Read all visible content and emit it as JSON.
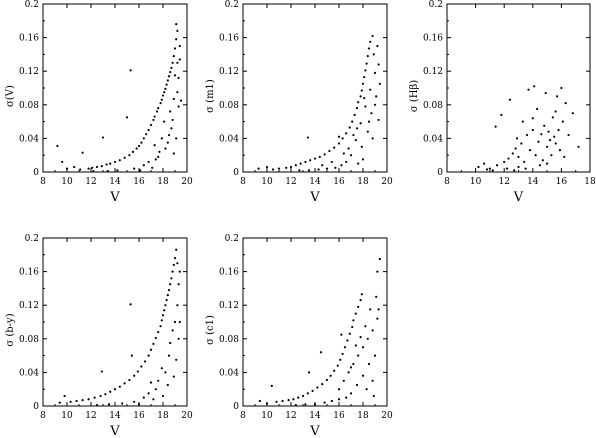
{
  "chart_data": [
    {
      "type": "scatter",
      "xlabel": "V",
      "ylabel": "σ(V)",
      "xlim": [
        8,
        20
      ],
      "ylim": [
        0,
        0.2
      ],
      "xticks": [
        "8",
        "10",
        "12",
        "14",
        "16",
        "18",
        "20"
      ],
      "yticks": [
        "0",
        "0.04",
        "0.08",
        "0.12",
        "0.16",
        "0.2"
      ],
      "points": [
        [
          9.2,
          0.031
        ],
        [
          9.6,
          0.012
        ],
        [
          10.0,
          0.004
        ],
        [
          10.6,
          0.006
        ],
        [
          11.1,
          0.003
        ],
        [
          11.3,
          0.023
        ],
        [
          11.8,
          0.004
        ],
        [
          12.1,
          0.005
        ],
        [
          12.5,
          0.006
        ],
        [
          12.9,
          0.007
        ],
        [
          13.0,
          0.041
        ],
        [
          13.3,
          0.009
        ],
        [
          13.6,
          0.01
        ],
        [
          14.0,
          0.012
        ],
        [
          14.4,
          0.014
        ],
        [
          14.8,
          0.017
        ],
        [
          15.0,
          0.065
        ],
        [
          15.2,
          0.02
        ],
        [
          15.3,
          0.121
        ],
        [
          15.5,
          0.024
        ],
        [
          15.8,
          0.028
        ],
        [
          16.0,
          0.031
        ],
        [
          16.2,
          0.035
        ],
        [
          16.4,
          0.04
        ],
        [
          16.6,
          0.045
        ],
        [
          16.8,
          0.05
        ],
        [
          17.0,
          0.056
        ],
        [
          17.2,
          0.062
        ],
        [
          17.3,
          0.066
        ],
        [
          17.5,
          0.072
        ],
        [
          17.6,
          0.076
        ],
        [
          17.8,
          0.082
        ],
        [
          17.9,
          0.086
        ],
        [
          18.0,
          0.091
        ],
        [
          18.1,
          0.095
        ],
        [
          18.2,
          0.099
        ],
        [
          18.3,
          0.104
        ],
        [
          18.4,
          0.109
        ],
        [
          18.5,
          0.114
        ],
        [
          18.6,
          0.119
        ],
        [
          18.7,
          0.124
        ],
        [
          18.8,
          0.13
        ],
        [
          18.9,
          0.138
        ],
        [
          19.0,
          0.147
        ],
        [
          19.1,
          0.158
        ],
        [
          19.2,
          0.168
        ],
        [
          19.1,
          0.176
        ],
        [
          18.8,
          0.062
        ],
        [
          18.5,
          0.044
        ],
        [
          18.9,
          0.087
        ],
        [
          19.3,
          0.112
        ],
        [
          19.4,
          0.134
        ],
        [
          18.2,
          0.028
        ],
        [
          17.6,
          0.018
        ],
        [
          17.9,
          0.04
        ],
        [
          18.6,
          0.072
        ],
        [
          19.2,
          0.095
        ],
        [
          19.0,
          0.115
        ],
        [
          16.4,
          0.008
        ],
        [
          16.8,
          0.012
        ],
        [
          17.1,
          0.005
        ],
        [
          17.4,
          0.015
        ],
        [
          17.7,
          0.024
        ],
        [
          18.1,
          0.06
        ],
        [
          18.4,
          0.035
        ],
        [
          18.7,
          0.052
        ],
        [
          19.3,
          0.078
        ],
        [
          19.4,
          0.15
        ],
        [
          15.6,
          0.004
        ],
        [
          16.1,
          0.002
        ],
        [
          14.2,
          0.002
        ],
        [
          13.4,
          0.001
        ],
        [
          12.2,
          0.001
        ],
        [
          18.9,
          0.022
        ],
        [
          19.1,
          0.04
        ],
        [
          17.3,
          0.032
        ],
        [
          19.5,
          0.085
        ],
        [
          19.2,
          0.13
        ]
      ]
    },
    {
      "type": "scatter",
      "xlabel": "V",
      "ylabel": "σ (m1)",
      "xlim": [
        8,
        20
      ],
      "ylim": [
        0,
        0.2
      ],
      "xticks": [
        "8",
        "10",
        "12",
        "14",
        "16",
        "18",
        "20"
      ],
      "yticks": [
        "0",
        "0.04",
        "0.08",
        "0.12",
        "0.16",
        "0.2"
      ],
      "points": [
        [
          9.3,
          0.004
        ],
        [
          10.0,
          0.006
        ],
        [
          10.5,
          0.003
        ],
        [
          11.0,
          0.004
        ],
        [
          11.6,
          0.005
        ],
        [
          12.0,
          0.006
        ],
        [
          12.4,
          0.008
        ],
        [
          12.8,
          0.01
        ],
        [
          13.2,
          0.012
        ],
        [
          13.4,
          0.041
        ],
        [
          13.6,
          0.014
        ],
        [
          14.0,
          0.016
        ],
        [
          14.4,
          0.018
        ],
        [
          14.8,
          0.021
        ],
        [
          15.2,
          0.025
        ],
        [
          15.6,
          0.029
        ],
        [
          16.0,
          0.034
        ],
        [
          16.3,
          0.04
        ],
        [
          16.6,
          0.046
        ],
        [
          16.9,
          0.053
        ],
        [
          17.1,
          0.06
        ],
        [
          17.3,
          0.068
        ],
        [
          17.5,
          0.076
        ],
        [
          17.6,
          0.083
        ],
        [
          17.8,
          0.09
        ],
        [
          17.9,
          0.097
        ],
        [
          18.0,
          0.105
        ],
        [
          18.1,
          0.113
        ],
        [
          18.2,
          0.121
        ],
        [
          18.3,
          0.129
        ],
        [
          18.4,
          0.138
        ],
        [
          18.5,
          0.147
        ],
        [
          18.6,
          0.155
        ],
        [
          18.8,
          0.162
        ],
        [
          17.0,
          0.02
        ],
        [
          17.4,
          0.038
        ],
        [
          17.8,
          0.058
        ],
        [
          18.2,
          0.078
        ],
        [
          18.6,
          0.098
        ],
        [
          19.0,
          0.118
        ],
        [
          19.3,
          0.128
        ],
        [
          19.1,
          0.09
        ],
        [
          18.7,
          0.07
        ],
        [
          18.4,
          0.048
        ],
        [
          17.9,
          0.03
        ],
        [
          16.6,
          0.012
        ],
        [
          16.2,
          0.008
        ],
        [
          15.7,
          0.005
        ],
        [
          15.0,
          0.004
        ],
        [
          14.3,
          0.003
        ],
        [
          13.5,
          0.002
        ],
        [
          12.7,
          0.002
        ],
        [
          18.9,
          0.14
        ],
        [
          19.2,
          0.15
        ],
        [
          19.4,
          0.105
        ],
        [
          17.2,
          0.044
        ],
        [
          16.8,
          0.028
        ],
        [
          18.5,
          0.06
        ],
        [
          19.0,
          0.08
        ],
        [
          18.0,
          0.015
        ],
        [
          17.6,
          0.01
        ],
        [
          16.4,
          0.022
        ],
        [
          15.4,
          0.012
        ],
        [
          14.6,
          0.008
        ],
        [
          19.3,
          0.062
        ],
        [
          18.8,
          0.04
        ],
        [
          17.5,
          0.052
        ],
        [
          16.0,
          0.042
        ],
        [
          18.1,
          0.088
        ]
      ]
    },
    {
      "type": "scatter",
      "xlabel": "V",
      "ylabel": "σ (Hβ)",
      "xlim": [
        8,
        18
      ],
      "ylim": [
        0,
        0.2
      ],
      "xticks": [
        "8",
        "10",
        "12",
        "14",
        "16",
        "18"
      ],
      "yticks": [
        "0",
        "0.04",
        "0.08",
        "0.12",
        "0.16",
        "0.2"
      ],
      "points": [
        [
          10.2,
          0.006
        ],
        [
          10.6,
          0.01
        ],
        [
          11.0,
          0.004
        ],
        [
          11.4,
          0.054
        ],
        [
          11.5,
          0.008
        ],
        [
          11.8,
          0.068
        ],
        [
          12.0,
          0.012
        ],
        [
          12.3,
          0.016
        ],
        [
          12.4,
          0.086
        ],
        [
          12.6,
          0.022
        ],
        [
          12.8,
          0.028
        ],
        [
          12.9,
          0.04
        ],
        [
          13.0,
          0.018
        ],
        [
          13.2,
          0.034
        ],
        [
          13.3,
          0.06
        ],
        [
          13.4,
          0.012
        ],
        [
          13.6,
          0.044
        ],
        [
          13.7,
          0.098
        ],
        [
          13.8,
          0.026
        ],
        [
          14.0,
          0.05
        ],
        [
          14.1,
          0.102
        ],
        [
          14.2,
          0.02
        ],
        [
          14.3,
          0.075
        ],
        [
          14.4,
          0.036
        ],
        [
          14.6,
          0.045
        ],
        [
          14.7,
          0.014
        ],
        [
          14.8,
          0.055
        ],
        [
          14.9,
          0.094
        ],
        [
          15.0,
          0.03
        ],
        [
          15.1,
          0.048
        ],
        [
          15.2,
          0.038
        ],
        [
          15.3,
          0.02
        ],
        [
          15.4,
          0.065
        ],
        [
          15.5,
          0.042
        ],
        [
          15.6,
          0.034
        ],
        [
          15.7,
          0.09
        ],
        [
          15.8,
          0.05
        ],
        [
          15.9,
          0.026
        ],
        [
          16.0,
          0.1
        ],
        [
          16.1,
          0.06
        ],
        [
          16.2,
          0.018
        ],
        [
          16.3,
          0.082
        ],
        [
          16.5,
          0.044
        ],
        [
          16.8,
          0.07
        ],
        [
          17.2,
          0.03
        ],
        [
          13.0,
          0.006
        ],
        [
          13.5,
          0.004
        ],
        [
          14.5,
          0.008
        ],
        [
          15.0,
          0.01
        ],
        [
          12.2,
          0.004
        ],
        [
          12.7,
          0.002
        ],
        [
          11.2,
          0.002
        ],
        [
          10.8,
          0.003
        ],
        [
          14.0,
          0.064
        ],
        [
          15.6,
          0.072
        ]
      ]
    },
    {
      "type": "scatter",
      "xlabel": "V",
      "ylabel": "σ (b-y)",
      "xlim": [
        8,
        20
      ],
      "ylim": [
        0,
        0.2
      ],
      "xticks": [
        "8",
        "10",
        "12",
        "14",
        "16",
        "18",
        "20"
      ],
      "yticks": [
        "0",
        "0.04",
        "0.08",
        "0.12",
        "0.16",
        "0.2"
      ],
      "points": [
        [
          9.4,
          0.004
        ],
        [
          9.8,
          0.012
        ],
        [
          10.3,
          0.005
        ],
        [
          10.8,
          0.006
        ],
        [
          11.3,
          0.007
        ],
        [
          11.8,
          0.008
        ],
        [
          12.3,
          0.01
        ],
        [
          12.8,
          0.012
        ],
        [
          12.9,
          0.041
        ],
        [
          13.2,
          0.014
        ],
        [
          13.6,
          0.017
        ],
        [
          14.0,
          0.02
        ],
        [
          14.4,
          0.023
        ],
        [
          14.8,
          0.027
        ],
        [
          15.2,
          0.031
        ],
        [
          15.3,
          0.121
        ],
        [
          15.4,
          0.06
        ],
        [
          15.6,
          0.036
        ],
        [
          15.9,
          0.041
        ],
        [
          16.2,
          0.047
        ],
        [
          16.5,
          0.053
        ],
        [
          16.8,
          0.06
        ],
        [
          17.0,
          0.067
        ],
        [
          17.2,
          0.074
        ],
        [
          17.4,
          0.081
        ],
        [
          17.6,
          0.088
        ],
        [
          17.8,
          0.095
        ],
        [
          17.9,
          0.102
        ],
        [
          18.0,
          0.108
        ],
        [
          18.1,
          0.114
        ],
        [
          18.2,
          0.12
        ],
        [
          18.3,
          0.126
        ],
        [
          18.4,
          0.132
        ],
        [
          18.5,
          0.138
        ],
        [
          18.6,
          0.145
        ],
        [
          18.7,
          0.152
        ],
        [
          18.8,
          0.16
        ],
        [
          18.9,
          0.168
        ],
        [
          19.0,
          0.176
        ],
        [
          19.1,
          0.186
        ],
        [
          18.5,
          0.06
        ],
        [
          18.8,
          0.09
        ],
        [
          19.2,
          0.12
        ],
        [
          19.3,
          0.145
        ],
        [
          19.4,
          0.16
        ],
        [
          17.6,
          0.03
        ],
        [
          17.9,
          0.045
        ],
        [
          18.2,
          0.04
        ],
        [
          18.6,
          0.075
        ],
        [
          19.0,
          0.1
        ],
        [
          16.4,
          0.01
        ],
        [
          16.8,
          0.015
        ],
        [
          17.2,
          0.008
        ],
        [
          17.4,
          0.02
        ],
        [
          18.0,
          0.012
        ],
        [
          18.4,
          0.025
        ],
        [
          19.1,
          0.055
        ],
        [
          19.3,
          0.08
        ],
        [
          15.6,
          0.005
        ],
        [
          14.6,
          0.003
        ],
        [
          13.5,
          0.002
        ],
        [
          12.5,
          0.001
        ],
        [
          16.0,
          0.002
        ],
        [
          18.9,
          0.035
        ],
        [
          19.4,
          0.1
        ],
        [
          17.0,
          0.028
        ],
        [
          19.2,
          0.17
        ]
      ]
    },
    {
      "type": "scatter",
      "xlabel": "V",
      "ylabel": "σ (c1)",
      "xlim": [
        8,
        20
      ],
      "ylim": [
        0,
        0.2
      ],
      "xticks": [
        "8",
        "10",
        "12",
        "14",
        "16",
        "18",
        "20"
      ],
      "yticks": [
        "0",
        "0.04",
        "0.08",
        "0.12",
        "0.16",
        "0.2"
      ],
      "points": [
        [
          9.4,
          0.006
        ],
        [
          10.0,
          0.003
        ],
        [
          10.4,
          0.024
        ],
        [
          10.8,
          0.005
        ],
        [
          11.3,
          0.006
        ],
        [
          11.8,
          0.007
        ],
        [
          12.2,
          0.008
        ],
        [
          12.6,
          0.01
        ],
        [
          13.0,
          0.012
        ],
        [
          13.4,
          0.015
        ],
        [
          13.5,
          0.04
        ],
        [
          13.8,
          0.018
        ],
        [
          14.2,
          0.022
        ],
        [
          14.5,
          0.064
        ],
        [
          14.6,
          0.026
        ],
        [
          15.0,
          0.031
        ],
        [
          15.3,
          0.036
        ],
        [
          15.6,
          0.042
        ],
        [
          15.9,
          0.048
        ],
        [
          16.1,
          0.055
        ],
        [
          16.3,
          0.062
        ],
        [
          16.5,
          0.07
        ],
        [
          16.7,
          0.078
        ],
        [
          16.9,
          0.086
        ],
        [
          17.1,
          0.094
        ],
        [
          17.2,
          0.102
        ],
        [
          17.4,
          0.11
        ],
        [
          17.6,
          0.118
        ],
        [
          17.8,
          0.126
        ],
        [
          17.9,
          0.133
        ],
        [
          16.0,
          0.02
        ],
        [
          16.4,
          0.03
        ],
        [
          16.8,
          0.04
        ],
        [
          17.2,
          0.05
        ],
        [
          17.6,
          0.06
        ],
        [
          18.0,
          0.07
        ],
        [
          18.4,
          0.08
        ],
        [
          18.8,
          0.09
        ],
        [
          19.2,
          0.104
        ],
        [
          19.3,
          0.115
        ],
        [
          19.4,
          0.175
        ],
        [
          19.2,
          0.16
        ],
        [
          18.5,
          0.05
        ],
        [
          18.0,
          0.036
        ],
        [
          17.5,
          0.025
        ],
        [
          17.0,
          0.015
        ],
        [
          16.6,
          0.01
        ],
        [
          16.0,
          0.008
        ],
        [
          15.4,
          0.006
        ],
        [
          14.8,
          0.004
        ],
        [
          14.0,
          0.002
        ],
        [
          13.2,
          0.002
        ],
        [
          12.4,
          0.001
        ],
        [
          18.8,
          0.03
        ],
        [
          19.0,
          0.06
        ],
        [
          18.2,
          0.095
        ],
        [
          17.8,
          0.082
        ],
        [
          17.4,
          0.072
        ],
        [
          16.2,
          0.085
        ],
        [
          18.6,
          0.115
        ],
        [
          19.1,
          0.13
        ],
        [
          17.0,
          0.046
        ],
        [
          18.9,
          0.012
        ],
        [
          18.3,
          0.02
        ]
      ]
    }
  ]
}
